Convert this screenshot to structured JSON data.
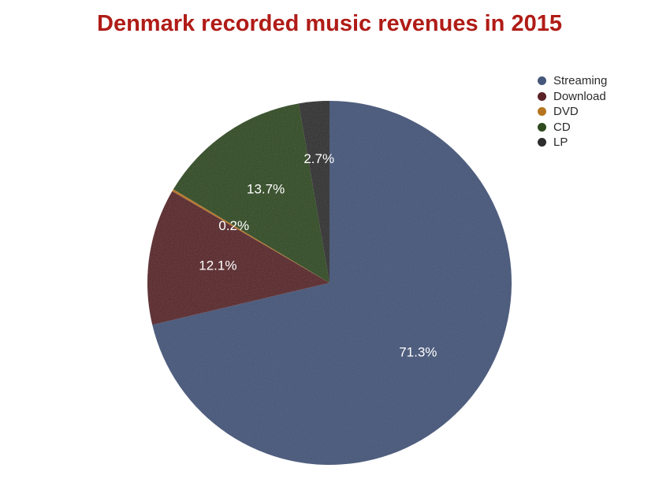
{
  "chart_data": {
    "type": "pie",
    "title": "Denmark recorded music revenues in 2015",
    "legend_position": "top-right",
    "slices": [
      {
        "name": "Streaming",
        "value": 71.3,
        "label": "71.3%",
        "color": "#45577a"
      },
      {
        "name": "Download",
        "value": 12.1,
        "label": "12.1%",
        "color": "#5a2126"
      },
      {
        "name": "DVD",
        "value": 0.2,
        "label": "0.2%",
        "color": "#b5761f"
      },
      {
        "name": "CD",
        "value": 13.7,
        "label": "13.7%",
        "color": "#2f4b1f"
      },
      {
        "name": "LP",
        "value": 2.7,
        "label": "2.7%",
        "color": "#2d2d2d"
      }
    ]
  }
}
